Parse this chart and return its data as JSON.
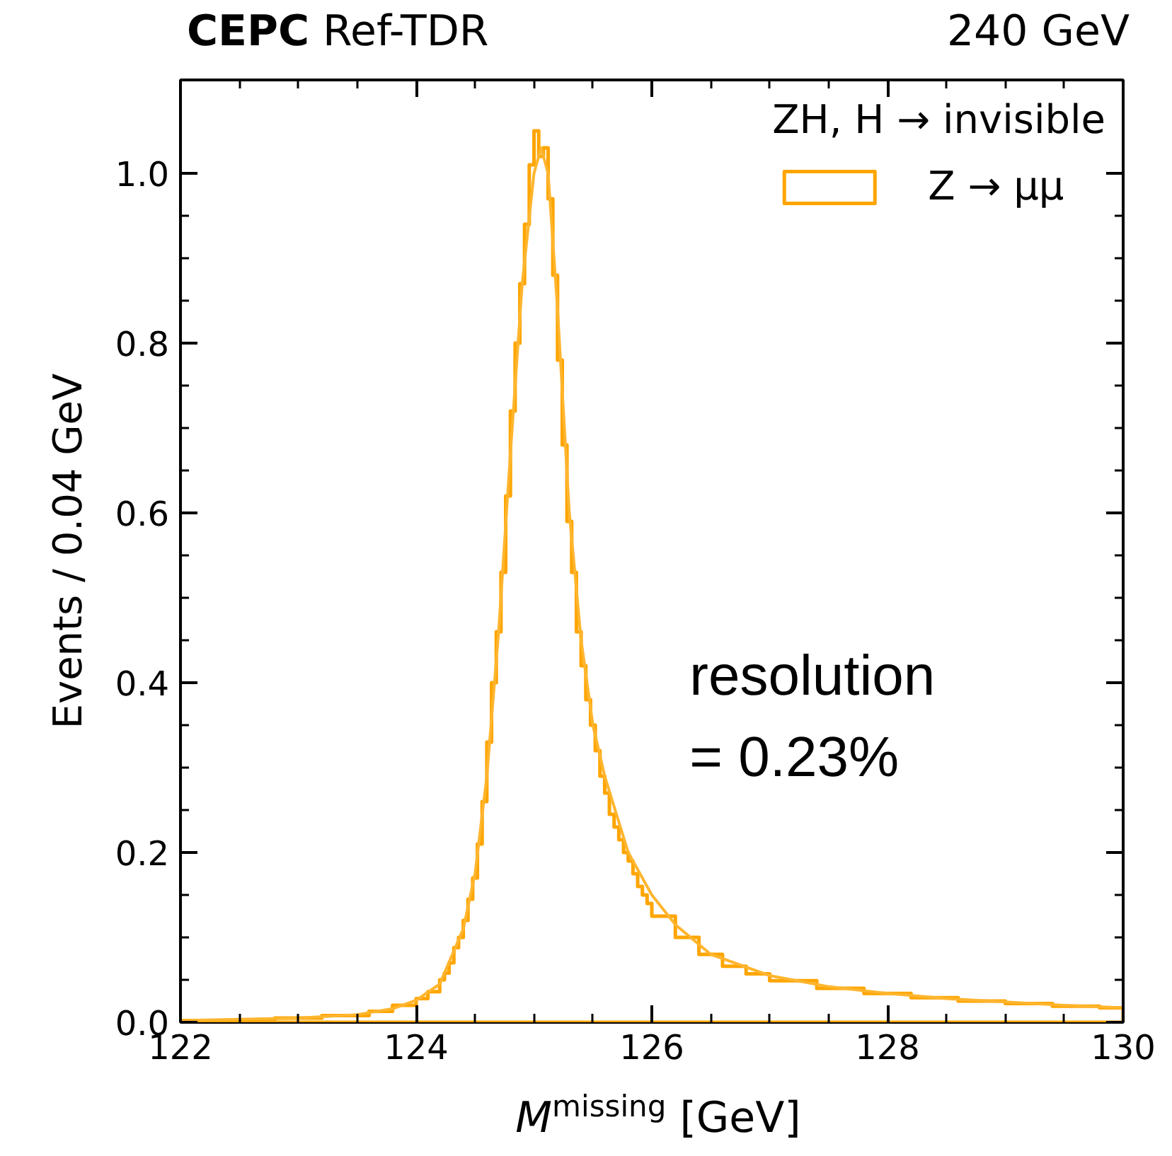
{
  "chart_data": {
    "type": "histogram",
    "title": "CEPC Ref-TDR",
    "subtitle": "240 GeV",
    "xlabel": "M$^{missing}$ [GeV]",
    "ylabel": "Events / 0.04 GeV",
    "legend_title": "ZH, H → invisible",
    "annotations": [
      "resolution\n= 0.23%"
    ],
    "xlim": [
      122,
      130
    ],
    "ylim": [
      0,
      1.11
    ],
    "xticks": [
      122,
      124,
      126,
      128,
      130
    ],
    "yticks": [
      {
        "value": 0,
        "label": "0.0"
      },
      {
        "value": 0.2,
        "label": "0.2"
      },
      {
        "value": 0.4,
        "label": "0.4"
      },
      {
        "value": 0.6,
        "label": "0.6"
      },
      {
        "value": 0.8,
        "label": "0.8"
      },
      {
        "value": 1.0,
        "label": "1.0"
      }
    ],
    "grid": false,
    "legend": "top right",
    "series": [
      {
        "name": "Z → μμ",
        "color": "#ffa500",
        "bins": [
          122.0,
          122.4,
          122.8,
          123.2,
          123.6,
          123.8,
          124.0,
          124.1,
          124.2,
          124.24,
          124.28,
          124.32,
          124.36,
          124.4,
          124.44,
          124.48,
          124.52,
          124.56,
          124.6,
          124.64,
          124.68,
          124.72,
          124.76,
          124.8,
          124.84,
          124.88,
          124.92,
          124.96,
          125.0,
          125.04,
          125.08,
          125.12,
          125.16,
          125.2,
          125.24,
          125.28,
          125.32,
          125.36,
          125.4,
          125.44,
          125.48,
          125.52,
          125.56,
          125.6,
          125.64,
          125.68,
          125.72,
          125.76,
          125.8,
          125.84,
          125.88,
          125.92,
          125.96,
          126.0,
          126.2,
          126.4,
          126.6,
          126.8,
          127.0,
          127.4,
          127.8,
          128.2,
          128.6,
          129.0,
          129.4,
          129.8,
          130.0
        ],
        "values": [
          0.002,
          0.003,
          0.005,
          0.008,
          0.013,
          0.02,
          0.028,
          0.036,
          0.05,
          0.058,
          0.07,
          0.088,
          0.1,
          0.12,
          0.145,
          0.17,
          0.21,
          0.26,
          0.33,
          0.4,
          0.46,
          0.53,
          0.62,
          0.72,
          0.8,
          0.87,
          0.94,
          1.01,
          1.05,
          1.02,
          1.03,
          0.97,
          0.88,
          0.78,
          0.68,
          0.59,
          0.53,
          0.46,
          0.42,
          0.38,
          0.35,
          0.32,
          0.29,
          0.27,
          0.245,
          0.23,
          0.215,
          0.2,
          0.19,
          0.175,
          0.16,
          0.15,
          0.14,
          0.125,
          0.1,
          0.08,
          0.066,
          0.057,
          0.049,
          0.04,
          0.034,
          0.029,
          0.025,
          0.022,
          0.019,
          0.017
        ]
      },
      {
        "type": "line",
        "color": "#ffb52e",
        "x": [
          122,
          123,
          123.5,
          123.8,
          124,
          124.2,
          124.4,
          124.5,
          124.6,
          124.7,
          124.8,
          124.9,
          125.0,
          125.06,
          125.12,
          125.2,
          125.3,
          125.4,
          125.5,
          125.6,
          125.8,
          126.0,
          126.2,
          126.5,
          127,
          127.5,
          128,
          128.5,
          129,
          129.5,
          130
        ],
        "values": [
          0.002,
          0.005,
          0.009,
          0.016,
          0.026,
          0.045,
          0.11,
          0.175,
          0.29,
          0.46,
          0.67,
          0.87,
          1.0,
          1.03,
          1.0,
          0.84,
          0.6,
          0.45,
          0.35,
          0.29,
          0.2,
          0.15,
          0.115,
          0.08,
          0.055,
          0.042,
          0.034,
          0.028,
          0.024,
          0.02,
          0.017
        ]
      }
    ]
  }
}
